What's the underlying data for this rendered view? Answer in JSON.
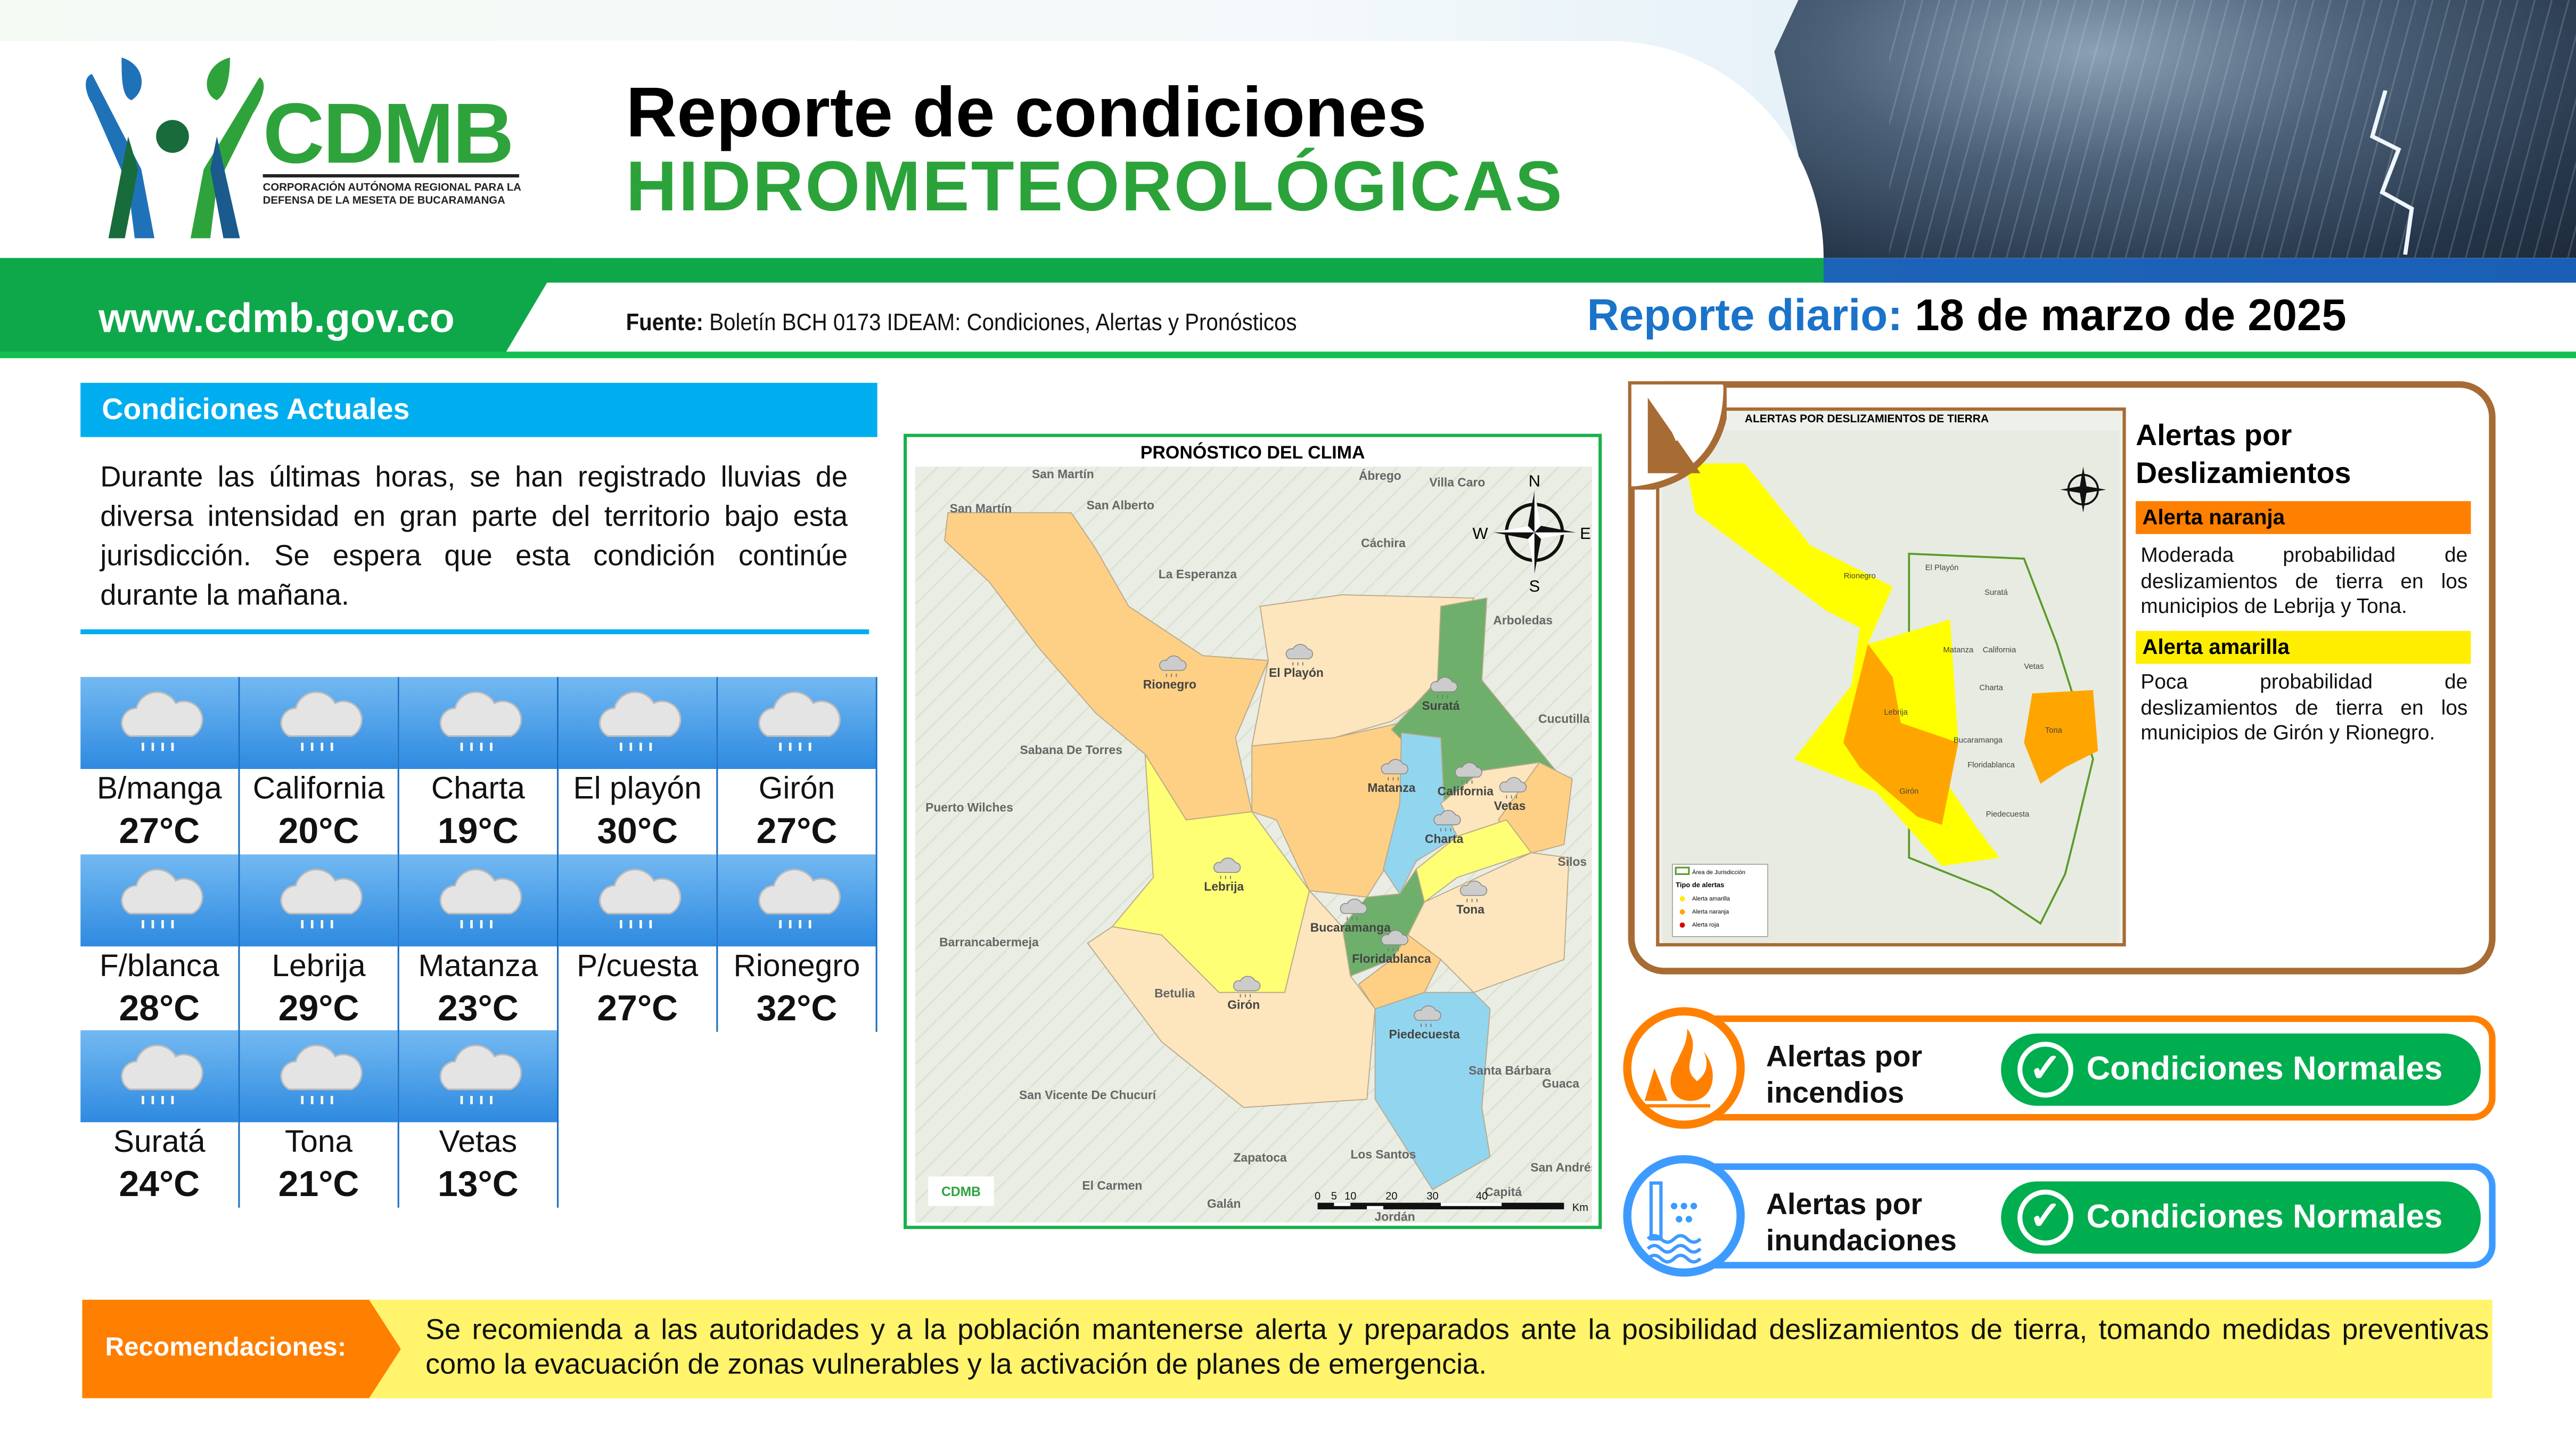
{
  "header": {
    "logo": {
      "name": "CDMB",
      "subtitle": "CORPORACIÓN AUTÓNOMA REGIONAL PARA LA DEFENSA DE LA MESETA DE BUCARAMANGA"
    },
    "title_line1": "Reporte de condiciones",
    "title_line2": "HIDROMETEOROLÓGICAS",
    "website": "www.cdmb.gov.co",
    "source_label": "Fuente:",
    "source_text": "Boletín BCH 0173 IDEAM: Condiciones, Alertas y Pronósticos",
    "report_label": "Reporte diario:",
    "report_date": "18 de marzo de 2025"
  },
  "conditions": {
    "title": "Condiciones Actuales",
    "text": "Durante las últimas horas, se han registrado lluvias de diversa intensidad en gran parte del territorio bajo esta jurisdicción. Se espera que esta condición continúe durante la mañana."
  },
  "weather": [
    {
      "name": "B/manga",
      "temp": "27°C",
      "icon": "rain-cloud-icon"
    },
    {
      "name": "California",
      "temp": "20°C",
      "icon": "rain-cloud-icon"
    },
    {
      "name": "Charta",
      "temp": "19°C",
      "icon": "rain-cloud-icon"
    },
    {
      "name": "El playón",
      "temp": "30°C",
      "icon": "rain-cloud-icon"
    },
    {
      "name": "Girón",
      "temp": "27°C",
      "icon": "rain-cloud-icon"
    },
    {
      "name": "F/blanca",
      "temp": "28°C",
      "icon": "rain-cloud-icon"
    },
    {
      "name": "Lebrija",
      "temp": "29°C",
      "icon": "rain-cloud-icon"
    },
    {
      "name": "Matanza",
      "temp": "23°C",
      "icon": "rain-cloud-icon"
    },
    {
      "name": "P/cuesta",
      "temp": "27°C",
      "icon": "rain-cloud-icon"
    },
    {
      "name": "Rionegro",
      "temp": "32°C",
      "icon": "rain-cloud-icon"
    },
    {
      "name": "Suratá",
      "temp": "24°C",
      "icon": "rain-cloud-icon"
    },
    {
      "name": "Tona",
      "temp": "21°C",
      "icon": "rain-cloud-icon"
    },
    {
      "name": "Vetas",
      "temp": "13°C",
      "icon": "rain-cloud-icon"
    }
  ],
  "forecast_map": {
    "title": "PRONÓSTICO DEL CLIMA",
    "municipalities": [
      "Rionegro",
      "El Playón",
      "Suratá",
      "Matanza",
      "California",
      "Vetas",
      "Charta",
      "Lebrija",
      "Tona",
      "Bucaramanga",
      "Floridablanca",
      "Girón",
      "Piedecuesta"
    ],
    "places": [
      "San Martín",
      "San Martín",
      "San Alberto",
      "Ábrego",
      "Villa Caro",
      "Cáchira",
      "La Esperanza",
      "Arboledas",
      "Cucutilla",
      "Sabana De Torres",
      "Puerto Wilches",
      "Silos",
      "Barrancabermeja",
      "Betulia",
      "Santa Bárbara",
      "Guaca",
      "San Vicente De Chucurí",
      "Zapatoca",
      "Los Santos",
      "El Carmen",
      "Galán",
      "Jordán",
      "San Andrés",
      "Capitá"
    ],
    "compass": [
      "N",
      "S",
      "W",
      "E"
    ],
    "scale": [
      "0",
      "5",
      "10",
      "20",
      "30",
      "40",
      "Km"
    ]
  },
  "landslide": {
    "map_title": "ALERTAS POR DESLIZAMIENTOS DE TIERRA",
    "map_municipalities": [
      "Rionegro",
      "Lebrija",
      "Girón",
      "Tona",
      "El Playón",
      "Suratá",
      "Matanza",
      "California",
      "Vetas",
      "Charta",
      "Bucaramanga",
      "Floridablanca",
      "Piedecuesta"
    ],
    "legend": {
      "area": "Área de Jurisdicción",
      "type_title": "Tipo de alertas",
      "items": [
        "Alerta amarilla",
        "Alerta naranja",
        "Alerta roja"
      ]
    },
    "title": "Alertas por Deslizamientos",
    "orange_label": "Alerta naranja",
    "orange_text": "Moderada probabilidad de deslizamientos de tierra en los municipios de Lebrija y Tona.",
    "yellow_label": "Alerta amarilla",
    "yellow_text": "Poca probabilidad de deslizamientos de tierra en los municipios de Girón y Rionegro.",
    "colors": {
      "orange": "#ff8000",
      "yellow": "#ffee00",
      "frame": "#a76b34"
    }
  },
  "fire": {
    "label_line1": "Alertas por",
    "label_line2": "incendios",
    "status": "Condiciones Normales",
    "color": "#ff8000"
  },
  "flood": {
    "label_line1": "Alertas por",
    "label_line2": "inundaciones",
    "status": "Condiciones Normales",
    "color": "#3d9bff"
  },
  "recommendations": {
    "label": "Recomendaciones:",
    "text": "Se recomienda a las autoridades y a la población mantenerse alerta y preparados ante la posibilidad deslizamientos de tierra, tomando medidas preventivas como la evacuación de zonas vulnerables y la activación de planes de emergencia."
  },
  "colors": {
    "green": "#0ea84a",
    "blue": "#00aeef",
    "status_green": "#00ad4f"
  }
}
